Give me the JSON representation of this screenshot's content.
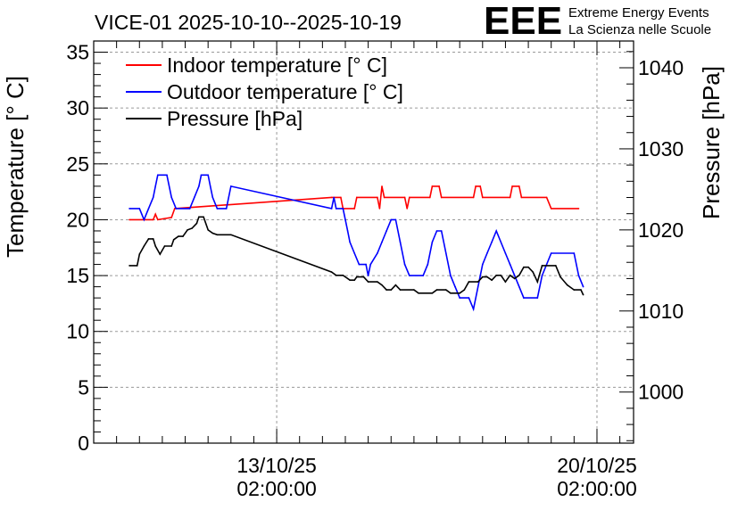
{
  "chart_data": {
    "type": "line",
    "title": "VICE-01 2025-10-10--2025-10-19",
    "logo": {
      "text": "EEE",
      "line1": "Extreme Energy Events",
      "line2": "La Scienza nelle Scuole",
      "color": "#0000ff"
    },
    "x_ticks": [
      {
        "date": "13/10/25",
        "time": "02:00:00",
        "x": 3.0
      },
      {
        "date": "20/10/25",
        "time": "02:00:00",
        "x": 10.0
      }
    ],
    "xlim": [
      -1.0,
      10.8
    ],
    "y_left": {
      "label": "Temperature [° C]",
      "lim": [
        0,
        36
      ],
      "ticks": [
        0,
        5,
        10,
        15,
        20,
        25,
        30,
        35
      ]
    },
    "y_right": {
      "label": "Pressure [hPa]",
      "lim": [
        993.7,
        1043.3
      ],
      "ticks": [
        1000,
        1010,
        1020,
        1030,
        1040
      ]
    },
    "grid": true,
    "legend_position": "top-left",
    "series": [
      {
        "name": "Indoor temperature [° C]",
        "axis": "left",
        "color": "#ff0000",
        "points": [
          [
            -0.22,
            20
          ],
          [
            0.3,
            20
          ],
          [
            0.35,
            20.5
          ],
          [
            0.4,
            20
          ],
          [
            0.7,
            20.2
          ],
          [
            0.77,
            21
          ],
          [
            4.2,
            22
          ],
          [
            4.4,
            22
          ],
          [
            4.45,
            21
          ],
          [
            4.7,
            21
          ],
          [
            4.75,
            22
          ],
          [
            5.2,
            22
          ],
          [
            5.25,
            21
          ],
          [
            5.3,
            23
          ],
          [
            5.35,
            22
          ],
          [
            5.8,
            22
          ],
          [
            5.85,
            21
          ],
          [
            5.9,
            22
          ],
          [
            6.35,
            22
          ],
          [
            6.4,
            23
          ],
          [
            6.55,
            23
          ],
          [
            6.6,
            22
          ],
          [
            7.3,
            22
          ],
          [
            7.35,
            23
          ],
          [
            7.45,
            23
          ],
          [
            7.5,
            22
          ],
          [
            8.1,
            22
          ],
          [
            8.15,
            23
          ],
          [
            8.3,
            23
          ],
          [
            8.35,
            22
          ],
          [
            8.9,
            22
          ],
          [
            9.0,
            21
          ],
          [
            9.6,
            21
          ]
        ]
      },
      {
        "name": "Outdoor temperature [° C]",
        "axis": "left",
        "color": "#0000ff",
        "points": [
          [
            -0.22,
            21
          ],
          [
            0.0,
            21
          ],
          [
            0.1,
            20
          ],
          [
            0.2,
            21
          ],
          [
            0.3,
            22
          ],
          [
            0.35,
            23
          ],
          [
            0.4,
            24
          ],
          [
            0.6,
            24
          ],
          [
            0.7,
            22
          ],
          [
            0.8,
            21
          ],
          [
            1.1,
            21
          ],
          [
            1.2,
            22
          ],
          [
            1.3,
            23
          ],
          [
            1.35,
            24
          ],
          [
            1.5,
            24
          ],
          [
            1.55,
            23
          ],
          [
            1.6,
            22
          ],
          [
            1.7,
            21
          ],
          [
            1.9,
            21
          ],
          [
            2.0,
            23
          ],
          [
            4.2,
            21
          ],
          [
            4.25,
            22
          ],
          [
            4.3,
            21
          ],
          [
            4.45,
            21
          ],
          [
            4.5,
            20
          ],
          [
            4.55,
            19
          ],
          [
            4.6,
            18
          ],
          [
            4.7,
            17
          ],
          [
            4.8,
            16
          ],
          [
            4.95,
            16
          ],
          [
            5.0,
            15
          ],
          [
            5.05,
            16
          ],
          [
            5.2,
            17
          ],
          [
            5.3,
            18
          ],
          [
            5.4,
            19
          ],
          [
            5.5,
            20
          ],
          [
            5.6,
            20
          ],
          [
            5.7,
            18
          ],
          [
            5.8,
            16
          ],
          [
            5.9,
            15
          ],
          [
            6.2,
            15
          ],
          [
            6.3,
            16
          ],
          [
            6.4,
            18
          ],
          [
            6.5,
            19
          ],
          [
            6.6,
            19
          ],
          [
            6.7,
            17
          ],
          [
            6.8,
            15
          ],
          [
            6.9,
            14
          ],
          [
            7.0,
            13
          ],
          [
            7.2,
            13
          ],
          [
            7.3,
            12
          ],
          [
            7.4,
            14
          ],
          [
            7.5,
            16
          ],
          [
            7.6,
            17
          ],
          [
            7.7,
            18
          ],
          [
            7.8,
            19
          ],
          [
            7.9,
            18
          ],
          [
            8.0,
            17
          ],
          [
            8.1,
            16
          ],
          [
            8.2,
            15
          ],
          [
            8.3,
            14
          ],
          [
            8.4,
            13
          ],
          [
            8.7,
            13
          ],
          [
            8.8,
            15
          ],
          [
            9.0,
            17
          ],
          [
            9.5,
            17
          ],
          [
            9.6,
            15
          ],
          [
            9.7,
            14
          ]
        ]
      },
      {
        "name": "Pressure [hPa]",
        "axis": "right",
        "color": "#000000",
        "points": [
          [
            -0.22,
            1015.6
          ],
          [
            -0.05,
            1015.6
          ],
          [
            0.0,
            1017
          ],
          [
            0.1,
            1018
          ],
          [
            0.2,
            1018.9
          ],
          [
            0.3,
            1018.9
          ],
          [
            0.35,
            1018
          ],
          [
            0.45,
            1017
          ],
          [
            0.55,
            1018
          ],
          [
            0.7,
            1018
          ],
          [
            0.75,
            1018.8
          ],
          [
            0.85,
            1019.2
          ],
          [
            0.95,
            1019.2
          ],
          [
            1.05,
            1020
          ],
          [
            1.15,
            1020.2
          ],
          [
            1.25,
            1020.8
          ],
          [
            1.3,
            1021.6
          ],
          [
            1.4,
            1021.6
          ],
          [
            1.5,
            1020
          ],
          [
            1.6,
            1019.6
          ],
          [
            1.7,
            1019.4
          ],
          [
            2.0,
            1019.4
          ],
          [
            4.2,
            1014.8
          ],
          [
            4.3,
            1014.4
          ],
          [
            4.45,
            1014.4
          ],
          [
            4.55,
            1014
          ],
          [
            4.6,
            1013.8
          ],
          [
            4.7,
            1013.8
          ],
          [
            4.75,
            1014.2
          ],
          [
            4.9,
            1014.2
          ],
          [
            5.0,
            1013.6
          ],
          [
            5.2,
            1013.6
          ],
          [
            5.3,
            1013.2
          ],
          [
            5.4,
            1012.6
          ],
          [
            5.5,
            1012.6
          ],
          [
            5.6,
            1013.2
          ],
          [
            5.7,
            1012.6
          ],
          [
            6.0,
            1012.6
          ],
          [
            6.1,
            1012.2
          ],
          [
            6.4,
            1012.2
          ],
          [
            6.5,
            1012.6
          ],
          [
            6.7,
            1012.6
          ],
          [
            6.8,
            1012.2
          ],
          [
            7.0,
            1012.2
          ],
          [
            7.1,
            1012.6
          ],
          [
            7.2,
            1013.6
          ],
          [
            7.4,
            1013.6
          ],
          [
            7.5,
            1014.2
          ],
          [
            7.6,
            1014.2
          ],
          [
            7.7,
            1013.8
          ],
          [
            7.8,
            1014.4
          ],
          [
            7.9,
            1014.4
          ],
          [
            8.0,
            1013.6
          ],
          [
            8.1,
            1014.4
          ],
          [
            8.2,
            1014
          ],
          [
            8.3,
            1014.4
          ],
          [
            8.4,
            1015.4
          ],
          [
            8.5,
            1015.4
          ],
          [
            8.6,
            1014.8
          ],
          [
            8.7,
            1013.6
          ],
          [
            8.8,
            1015.6
          ],
          [
            9.1,
            1015.6
          ],
          [
            9.2,
            1014.2
          ],
          [
            9.35,
            1013.2
          ],
          [
            9.5,
            1012.6
          ],
          [
            9.65,
            1012.6
          ],
          [
            9.7,
            1012
          ]
        ]
      }
    ]
  }
}
